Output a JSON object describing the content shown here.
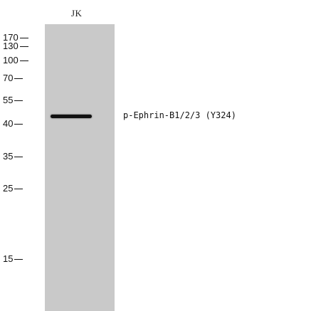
{
  "lane": {
    "label": "JK"
  },
  "markers": [
    {
      "label": "170",
      "dashes": "--"
    },
    {
      "label": "130",
      "dashes": "--"
    },
    {
      "label": "100",
      "dashes": "--"
    },
    {
      "label": "70",
      "dashes": "--"
    },
    {
      "label": "55",
      "dashes": "--"
    },
    {
      "label": "40",
      "dashes": "--"
    },
    {
      "label": "35",
      "dashes": "--"
    },
    {
      "label": "25",
      "dashes": "--"
    },
    {
      "label": "15",
      "dashes": "--"
    }
  ],
  "band": {
    "label": "p-Ephrin-B1/2/3 (Y324)"
  },
  "colors": {
    "lane_background": "#c9c9c9",
    "band": "#111111",
    "text": "#111111"
  }
}
